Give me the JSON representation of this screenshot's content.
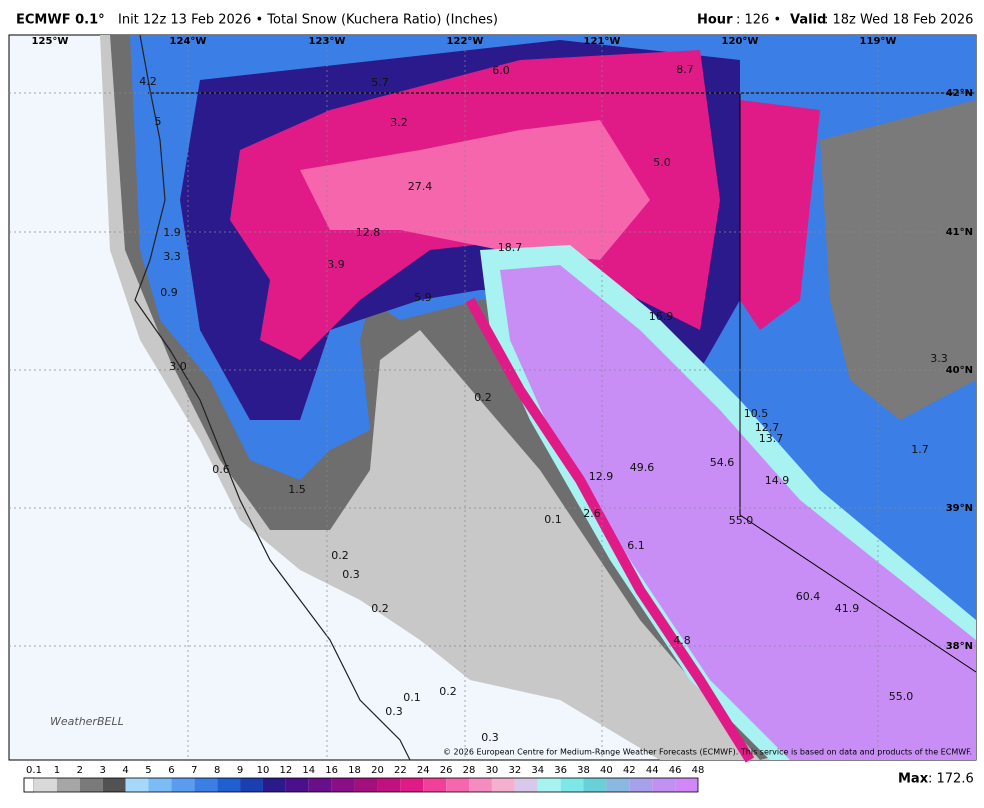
{
  "header": {
    "model": "ECMWF 0.1°",
    "description": "Init 12z 13 Feb 2026 • Total Snow (Kuchera Ratio) (Inches)",
    "hour_label": "Hour",
    "hour_value": ": 126 •",
    "valid_label": "Valid",
    "valid_value": ": 18z Wed 18 Feb 2026"
  },
  "longitudes": [
    "125°W",
    "124°W",
    "123°W",
    "122°W",
    "121°W",
    "120°W",
    "119°W"
  ],
  "latitudes": [
    "42°N",
    "41°N",
    "40°N",
    "39°N",
    "38°N"
  ],
  "point_values": [
    "4.2",
    "5.7",
    "6.0",
    "8.7",
    "5",
    "3.2",
    "5.0",
    "27.4",
    "1.9",
    "12.8",
    "18.7",
    "3.3",
    "3.9",
    "0.9",
    "5.9",
    "16.9",
    "3.3",
    "3.0",
    "0.2",
    "10.5",
    "12.7",
    "13.7",
    "1.7",
    "0.6",
    "49.6",
    "54.6",
    "12.9",
    "14.9",
    "1.5",
    "0.1",
    "2.6",
    "55.0",
    "6.1",
    "0.2",
    "0.3",
    "60.4",
    "41.9",
    "0.2",
    "4.8",
    "0.2",
    "0.1",
    "0.3",
    "55.0",
    "0.3"
  ],
  "copyright": "© 2026 European Centre for Medium-Range Weather Forecasts (ECMWF). This service is based on data and products of the ECMWF.",
  "logo": "WeatherBELL",
  "colorbar": {
    "labels": [
      "0.1",
      "1",
      "2",
      "3",
      "4",
      "5",
      "6",
      "7",
      "8",
      "9",
      "10",
      "12",
      "14",
      "16",
      "18",
      "20",
      "22",
      "24",
      "26",
      "28",
      "30",
      "32",
      "34",
      "36",
      "38",
      "40",
      "42",
      "44",
      "46",
      "48"
    ],
    "colors": [
      "#d9d9d9",
      "#a6a6a6",
      "#7a7a7a",
      "#525252",
      "#a6d8fc",
      "#7cbcf6",
      "#5a9df0",
      "#3b7ee6",
      "#1f5fd0",
      "#1a3fb0",
      "#2a1a8c",
      "#4b0f8a",
      "#6a0f8a",
      "#8a0f86",
      "#a3107e",
      "#c21080",
      "#e01a86",
      "#f0409a",
      "#f566ad",
      "#f58cc0",
      "#f5b0d0",
      "#d8c8ec",
      "#a8f2f2",
      "#7ee8e8",
      "#6ad0d8",
      "#8ab8e0",
      "#a8a0ea",
      "#c090f2",
      "#d088f8"
    ]
  },
  "max_label": "Max",
  "max_value": ": 172.6"
}
